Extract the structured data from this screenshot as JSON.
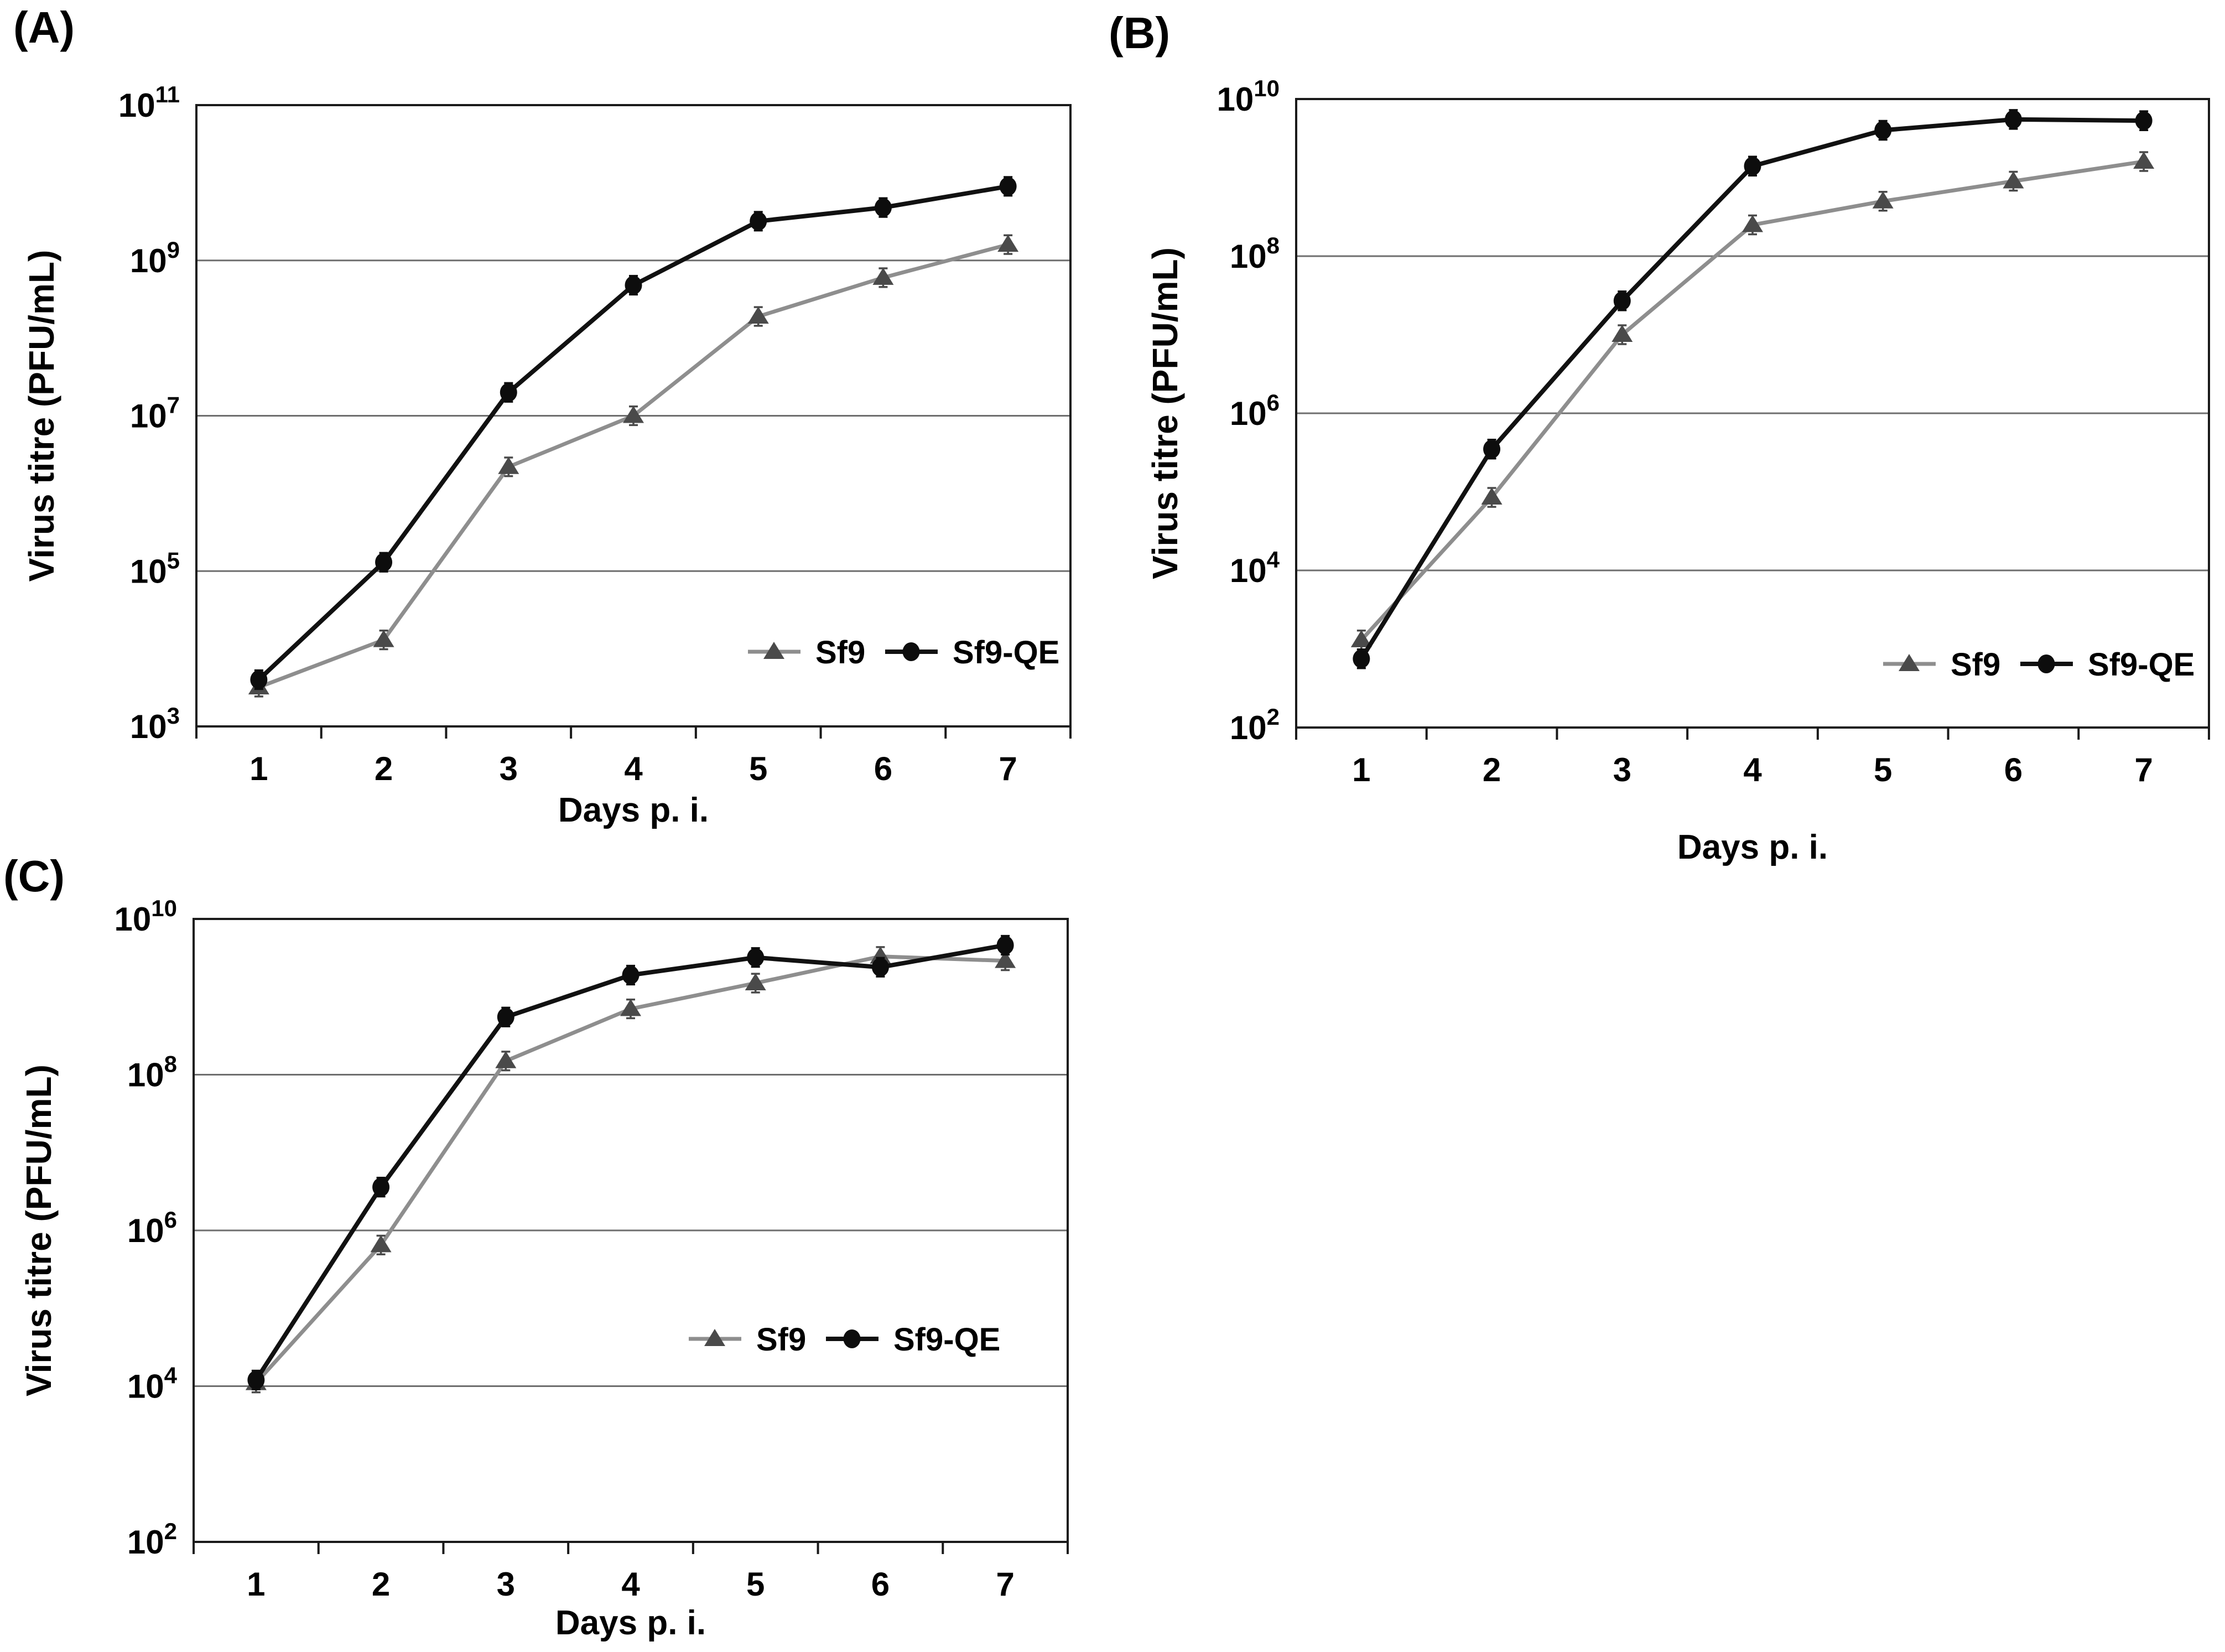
{
  "figure": {
    "background": "#ffffff",
    "text_color": "#000000",
    "gridline_color": "#6e6e6e",
    "axis_color": "#1a1a1a",
    "series_styles": {
      "Sf9": {
        "line_color": "#8e8e8e",
        "marker_color": "#4a4a4a",
        "marker": "triangle"
      },
      "Sf9-QE": {
        "line_color": "#111111",
        "marker_color": "#0d0d0d",
        "marker": "circle"
      }
    }
  },
  "chart_data": [
    {
      "panel": "(A)",
      "type": "line",
      "x": [
        1,
        2,
        3,
        4,
        5,
        6,
        7
      ],
      "x_tick_labels": [
        "1",
        "2",
        "3",
        "4",
        "5",
        "6",
        "7"
      ],
      "xlabel": "Days p. i.",
      "ylabel": "Virus titre (PFU/mL)",
      "y_scale": "log",
      "ylim_exponents": [
        3,
        11
      ],
      "y_tick_exponents": [
        3,
        5,
        7,
        9,
        11
      ],
      "gridline_exponents": [
        5,
        7,
        9
      ],
      "error_bars": true,
      "legend_position": "inside-bottom-right",
      "legend": [
        "Sf9",
        "Sf9-QE"
      ],
      "series": [
        {
          "name": "Sf9",
          "marker": "triangle",
          "values": [
            3200,
            13000,
            2200000,
            10000000,
            190000000,
            600000000,
            1600000000
          ]
        },
        {
          "name": "Sf9-QE",
          "marker": "circle",
          "values": [
            4000,
            130000,
            20000000,
            480000000,
            3200000000,
            4800000000,
            9000000000
          ]
        }
      ]
    },
    {
      "panel": "(B)",
      "type": "line",
      "x": [
        1,
        2,
        3,
        4,
        5,
        6,
        7
      ],
      "x_tick_labels": [
        "1",
        "2",
        "3",
        "4",
        "5",
        "6",
        "7"
      ],
      "xlabel": "Days p. i.",
      "ylabel": "Virus titre (PFU/mL)",
      "y_scale": "log",
      "ylim_exponents": [
        2,
        10
      ],
      "y_tick_exponents": [
        2,
        4,
        6,
        8,
        10
      ],
      "gridline_exponents": [
        4,
        6,
        8
      ],
      "error_bars": true,
      "legend_position": "inside-bottom-right",
      "legend": [
        "Sf9",
        "Sf9-QE"
      ],
      "series": [
        {
          "name": "Sf9",
          "marker": "triangle",
          "values": [
            1300,
            85000,
            10000000,
            250000000,
            500000000,
            900000000,
            1600000000
          ]
        },
        {
          "name": "Sf9-QE",
          "marker": "circle",
          "values": [
            750,
            350000,
            27000000,
            1400000000,
            4000000000,
            5500000000,
            5300000000
          ]
        }
      ]
    },
    {
      "panel": "(C)",
      "type": "line",
      "x": [
        1,
        2,
        3,
        4,
        5,
        6,
        7
      ],
      "x_tick_labels": [
        "1",
        "2",
        "3",
        "4",
        "5",
        "6",
        "7"
      ],
      "xlabel": "Days p. i.",
      "ylabel": "Virus titre (PFU/mL)",
      "y_scale": "log",
      "ylim_exponents": [
        2,
        10
      ],
      "y_tick_exponents": [
        2,
        4,
        6,
        8,
        10
      ],
      "gridline_exponents": [
        4,
        6,
        8
      ],
      "error_bars": true,
      "legend_position": "inside-middle-right",
      "legend": [
        "Sf9",
        "Sf9-QE"
      ],
      "series": [
        {
          "name": "Sf9",
          "marker": "triangle",
          "values": [
            11000,
            650000,
            150000000,
            700000000,
            1500000000,
            3300000000,
            2900000000
          ]
        },
        {
          "name": "Sf9-QE",
          "marker": "circle",
          "values": [
            12000,
            3600000,
            550000000,
            1900000000,
            3200000000,
            2400000000,
            4600000000
          ]
        }
      ]
    }
  ]
}
